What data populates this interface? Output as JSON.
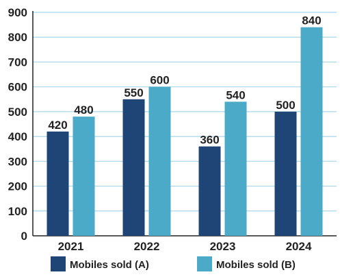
{
  "chart_data": {
    "type": "bar",
    "title": "",
    "xlabel": "",
    "ylabel": "",
    "categories": [
      "2021",
      "2022",
      "2023",
      "2024"
    ],
    "series": [
      {
        "name": "Mobiles sold (A)",
        "values": [
          420,
          550,
          360,
          500
        ],
        "color": "#1f4576"
      },
      {
        "name": "Mobiles sold (B)",
        "values": [
          480,
          600,
          540,
          840
        ],
        "color": "#4aaac8"
      }
    ],
    "ylim": [
      0,
      900
    ],
    "yticks": [
      0,
      100,
      200,
      300,
      400,
      500,
      600,
      700,
      800,
      900
    ],
    "grid": true,
    "legend": "bottom",
    "data_labels": true,
    "gridline_color": "#a9d6e6",
    "axis_color": "#222222",
    "text_color": "#222222"
  }
}
